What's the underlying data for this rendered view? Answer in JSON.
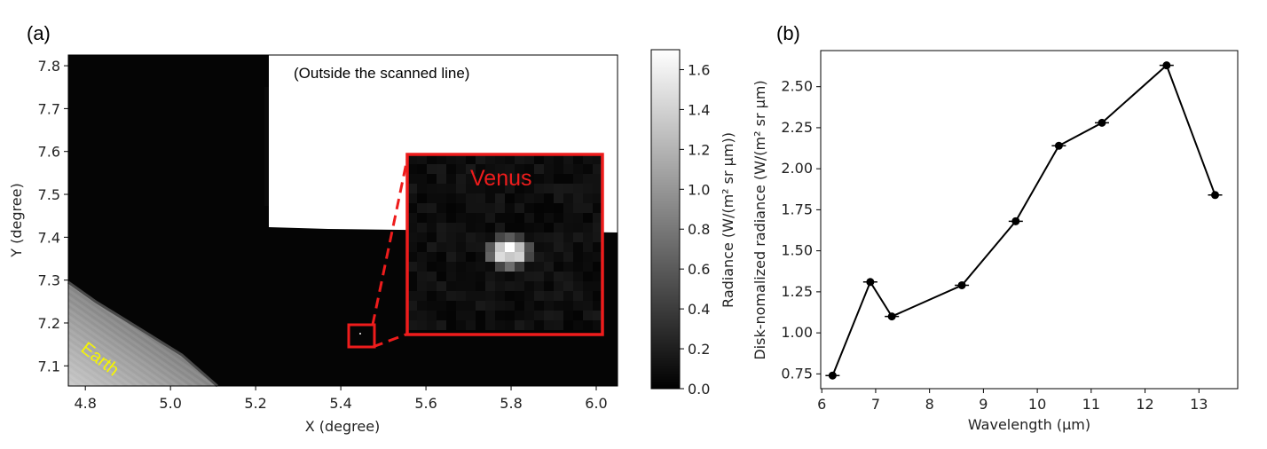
{
  "chart_data": [
    {
      "type": "heatmap",
      "panel_label": "(a)",
      "xlabel": "X (degree)",
      "ylabel": "Y (degree)",
      "xlim": [
        4.76,
        6.05
      ],
      "ylim": [
        7.053,
        7.825
      ],
      "x_ticks": [
        "4.8",
        "5.0",
        "5.2",
        "5.4",
        "5.6",
        "5.8",
        "6.0"
      ],
      "y_ticks": [
        "7.1",
        "7.2",
        "7.3",
        "7.4",
        "7.5",
        "7.6",
        "7.7",
        "7.8"
      ],
      "colorbar": {
        "label": "Radiance (W/(m² sr μm))",
        "range": [
          0.0,
          1.7
        ],
        "ticks": [
          "0.0",
          "0.2",
          "0.4",
          "0.6",
          "0.8",
          "1.0",
          "1.2",
          "1.4",
          "1.6"
        ],
        "colormap": "gray"
      },
      "annotations": {
        "outside": "(Outside the scanned line)",
        "target": "Venus",
        "earth": "Earth"
      },
      "venus_position": [
        5.45,
        7.17
      ],
      "colors": {
        "highlight": "#ee1c1c",
        "earth_label": "#f5f500"
      }
    },
    {
      "type": "line",
      "panel_label": "(b)",
      "xlabel": "Wavelength (μm)",
      "ylabel": "Disk-nomalized radiance (W/(m² sr μm)",
      "xlim": [
        5.98,
        13.72
      ],
      "ylim": [
        0.66,
        2.72
      ],
      "x_ticks": [
        "6",
        "7",
        "8",
        "9",
        "10",
        "11",
        "12",
        "13"
      ],
      "y_ticks": [
        "0.75",
        "1.00",
        "1.25",
        "1.50",
        "1.75",
        "2.00",
        "2.25",
        "2.50"
      ],
      "series": [
        {
          "x": [
            6.2,
            6.9,
            7.3,
            8.6,
            9.6,
            10.4,
            11.2,
            12.4,
            13.3
          ],
          "y": [
            0.74,
            1.31,
            1.1,
            1.29,
            1.68,
            2.14,
            2.28,
            2.63,
            1.84
          ]
        }
      ],
      "colors": {
        "line": "#000000"
      }
    }
  ]
}
